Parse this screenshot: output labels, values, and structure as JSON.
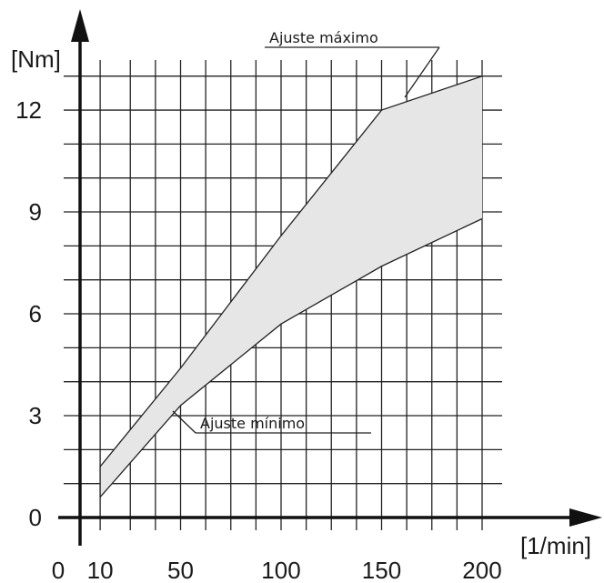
{
  "chart_data": {
    "type": "area",
    "x_unit_label": "[1/min]",
    "y_unit_label": "[Nm]",
    "x_tick_labels": [
      "0",
      "10",
      "50",
      "100",
      "150",
      "200"
    ],
    "x_tick_values": [
      0,
      10,
      50,
      100,
      150,
      200
    ],
    "y_tick_labels": [
      "0",
      "3",
      "6",
      "9",
      "12"
    ],
    "y_tick_values": [
      0,
      3,
      6,
      9,
      12
    ],
    "xlim": [
      0,
      200
    ],
    "ylim": [
      0,
      13
    ],
    "grid": true,
    "series": [
      {
        "name": "Ajuste máximo",
        "x": [
          10,
          50,
          100,
          150,
          200
        ],
        "y": [
          1.5,
          4.4,
          8.3,
          12.0,
          13.0
        ]
      },
      {
        "name": "Ajuste mínimo",
        "x": [
          10,
          50,
          100,
          150,
          200
        ],
        "y": [
          0.6,
          3.3,
          5.7,
          7.4,
          8.8
        ]
      }
    ],
    "fill_between": true,
    "annotations": [
      {
        "text": "Ajuste máximo",
        "series": "Ajuste máximo"
      },
      {
        "text": "Ajuste mínimo",
        "series": "Ajuste mínimo"
      }
    ],
    "colors": {
      "band": "#e6e6e6",
      "line": "#222222",
      "axis": "#111111"
    }
  }
}
